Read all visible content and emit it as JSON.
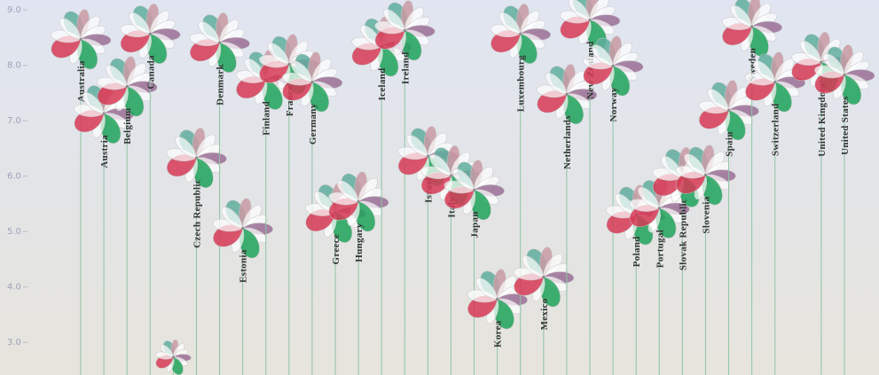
{
  "chart_data": {
    "type": "flower",
    "categories": [
      "Australia",
      "Austria",
      "Belgium",
      "Canada",
      null,
      "Czech Republic",
      "Denmark",
      "Estonia",
      "Finland",
      "France",
      "Germany",
      "Greece",
      "Hungary",
      "Iceland",
      "Ireland",
      "Israel",
      "Italy",
      "Japan",
      "Korea",
      "Luxembourg",
      "Mexico",
      "Netherlands",
      "New Zealand",
      "Norway",
      "Poland",
      "Portugal",
      "Slovak Republic",
      "Slovenia",
      "Spain",
      "Sweden",
      "Switzerland",
      null,
      "United Kingdom",
      "United States"
    ],
    "values": [
      8.47,
      7.13,
      7.62,
      8.57,
      2.73,
      6.33,
      8.41,
      5.06,
      7.74,
      8.02,
      7.7,
      5.34,
      5.54,
      8.34,
      8.63,
      6.36,
      6.01,
      5.75,
      3.78,
      8.57,
      4.18,
      7.48,
      8.82,
      7.99,
      5.3,
      5.42,
      5.98,
      6.02,
      7.19,
      8.7,
      7.7,
      null,
      8.06,
      7.83
    ],
    "ylim": [
      2.41,
      9.18
    ],
    "yticks": [
      {
        "value": 3,
        "label": "3.0"
      },
      {
        "value": 4,
        "label": "4.0"
      },
      {
        "value": 5,
        "label": "5.0"
      },
      {
        "value": 6,
        "label": "6.0"
      },
      {
        "value": 7,
        "label": "7.0"
      },
      {
        "value": 8,
        "label": "8.0"
      },
      {
        "value": 9,
        "label": "9.0"
      }
    ],
    "stem_color": "#8fc4a4"
  }
}
